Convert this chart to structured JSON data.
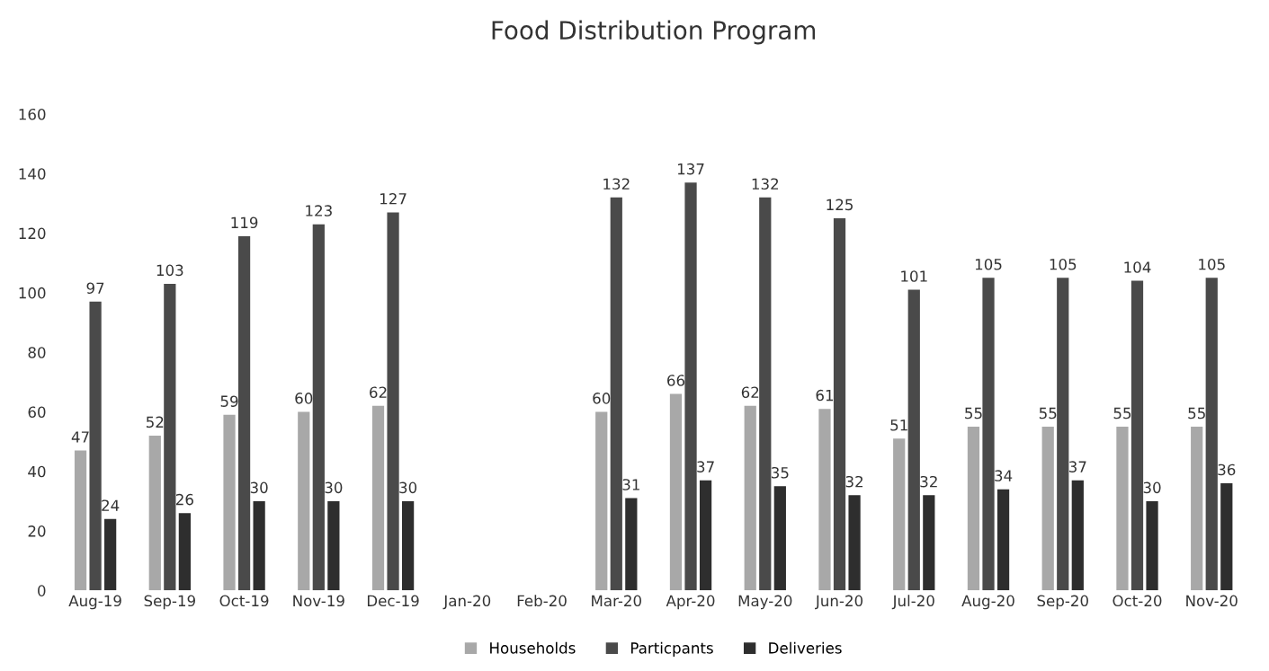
{
  "chart_data": {
    "type": "bar",
    "title": "Food Distribution Program",
    "categories": [
      "Aug-19",
      "Sep-19",
      "Oct-19",
      "Nov-19",
      "Dec-19",
      "Jan-20",
      "Feb-20",
      "Mar-20",
      "Apr-20",
      "May-20",
      "Jun-20",
      "Jul-20",
      "Aug-20",
      "Sep-20",
      "Oct-20",
      "Nov-20"
    ],
    "series": [
      {
        "name": "Households",
        "color": "#a8a8a8",
        "values": [
          47,
          52,
          59,
          60,
          62,
          null,
          null,
          60,
          66,
          62,
          61,
          51,
          55,
          55,
          55,
          55
        ]
      },
      {
        "name": "Particpants",
        "color": "#4a4a4a",
        "values": [
          97,
          103,
          119,
          123,
          127,
          null,
          null,
          132,
          137,
          132,
          125,
          101,
          105,
          105,
          104,
          105
        ]
      },
      {
        "name": "Deliveries",
        "color": "#2e2e2e",
        "values": [
          24,
          26,
          30,
          30,
          30,
          null,
          null,
          31,
          37,
          35,
          32,
          32,
          34,
          37,
          30,
          36
        ]
      }
    ],
    "ylim": [
      0,
      160
    ],
    "yticks": [
      0,
      20,
      40,
      60,
      80,
      100,
      120,
      140,
      160
    ],
    "data_labels": true,
    "grid": false,
    "legend": "bottom"
  }
}
